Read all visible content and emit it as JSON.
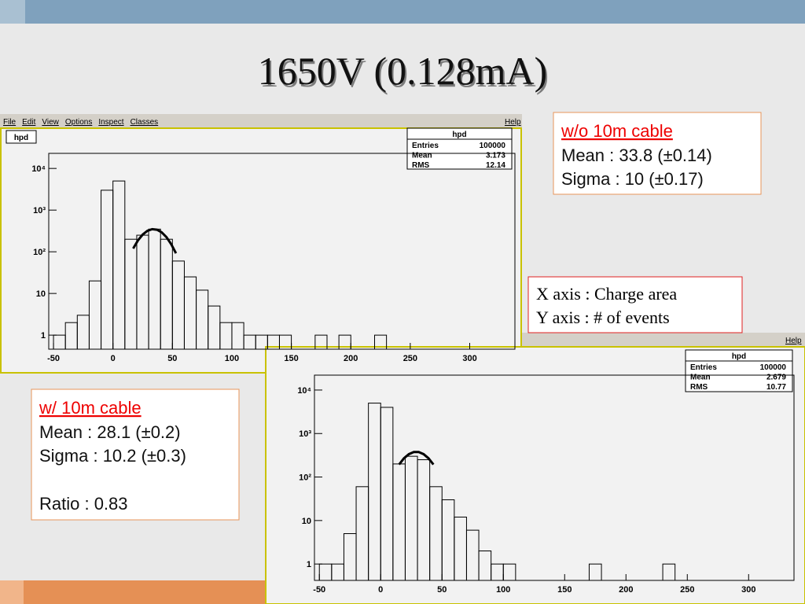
{
  "title": "1650V (0.128mA)",
  "notes": [
    {
      "heading": "w/o 10m cable",
      "lines": [
        "Mean : 33.8 (±0.14)",
        "Sigma : 10 (±0.17)"
      ]
    },
    {
      "lines": [
        "X axis : Charge area",
        "Y axis : # of events"
      ]
    },
    {
      "heading": "w/ 10m cable",
      "lines": [
        "Mean : 28.1 (±0.2)",
        "Sigma : 10.2 (±0.3)",
        "Ratio : 0.83"
      ]
    }
  ],
  "panels": [
    {
      "menu": [
        "File",
        "Edit",
        "View",
        "Options",
        "Inspect",
        "Classes"
      ],
      "help": "Help",
      "tab": "hpd",
      "stats": {
        "title": "hpd",
        "rows": [
          [
            "Entries",
            "100000"
          ],
          [
            "Mean",
            "3.173"
          ],
          [
            "RMS",
            "12.14"
          ]
        ]
      }
    },
    {
      "help": "Help",
      "stats": {
        "title": "hpd",
        "rows": [
          [
            "Entries",
            "100000"
          ],
          [
            "Mean",
            "2.679"
          ],
          [
            "RMS",
            "10.77"
          ]
        ]
      }
    }
  ],
  "chart_data": [
    {
      "type": "histogram",
      "log_y": true,
      "bins": [
        -50,
        -40,
        -30,
        -20,
        -10,
        0,
        10,
        20,
        30,
        40,
        50,
        60,
        70,
        80,
        90,
        100,
        110,
        120,
        130,
        140,
        150,
        160,
        170,
        180,
        190,
        200,
        210,
        220,
        230,
        240,
        250,
        260,
        270,
        280,
        290,
        300
      ],
      "values": [
        1,
        2,
        3,
        20,
        3000,
        5000,
        200,
        250,
        350,
        200,
        60,
        25,
        12,
        5,
        2,
        2,
        1,
        1,
        1,
        1,
        0,
        0,
        1,
        0,
        1,
        0,
        0,
        1,
        0,
        0,
        0,
        0,
        0,
        0,
        0
      ],
      "fit": {
        "x": [
          17,
          21,
          25,
          29,
          33,
          37,
          41,
          45,
          49,
          53
        ],
        "values": [
          120,
          187,
          259,
          319,
          349,
          338,
          292,
          224,
          152,
          92
        ]
      },
      "xlim": [
        -54,
        338
      ],
      "xticks": [
        -50,
        0,
        50,
        100,
        150,
        200,
        250,
        300
      ],
      "ylim": [
        0.46,
        23000
      ],
      "yticks": [
        {
          "value": 1,
          "label": "1"
        },
        10,
        {
          "value": 100,
          "label": "10²"
        },
        {
          "value": 1000,
          "label": "10³"
        },
        {
          "value": 10000,
          "label": "10⁴"
        }
      ]
    },
    {
      "type": "histogram",
      "log_y": true,
      "bins": [
        -50,
        -40,
        -30,
        -20,
        -10,
        0,
        10,
        20,
        30,
        40,
        50,
        60,
        70,
        80,
        90,
        100,
        110,
        120,
        130,
        140,
        150,
        160,
        170,
        180,
        190,
        200,
        210,
        220,
        230,
        240,
        250,
        260,
        270,
        280,
        290,
        300
      ],
      "values": [
        1,
        1,
        5,
        60,
        5000,
        4000,
        200,
        300,
        250,
        60,
        30,
        12,
        6,
        2,
        1,
        1,
        0,
        0,
        0,
        0,
        0,
        0,
        1,
        0,
        0,
        0,
        0,
        0,
        1,
        0,
        0,
        0,
        0,
        0,
        0
      ],
      "fit": {
        "x": [
          15,
          19,
          23,
          27,
          31,
          35,
          39,
          43
        ],
        "values": [
          194,
          270,
          336,
          375,
          375,
          336,
          270,
          194
        ]
      },
      "xlim": [
        -54,
        337
      ],
      "xticks": [
        -50,
        0,
        50,
        100,
        150,
        200,
        250,
        300
      ],
      "ylim": [
        0.42,
        22000
      ],
      "yticks": [
        {
          "value": 1,
          "label": "1"
        },
        10,
        {
          "value": 100,
          "label": "10²"
        },
        {
          "value": 1000,
          "label": "10³"
        },
        {
          "value": 10000,
          "label": "10⁴"
        }
      ]
    }
  ]
}
